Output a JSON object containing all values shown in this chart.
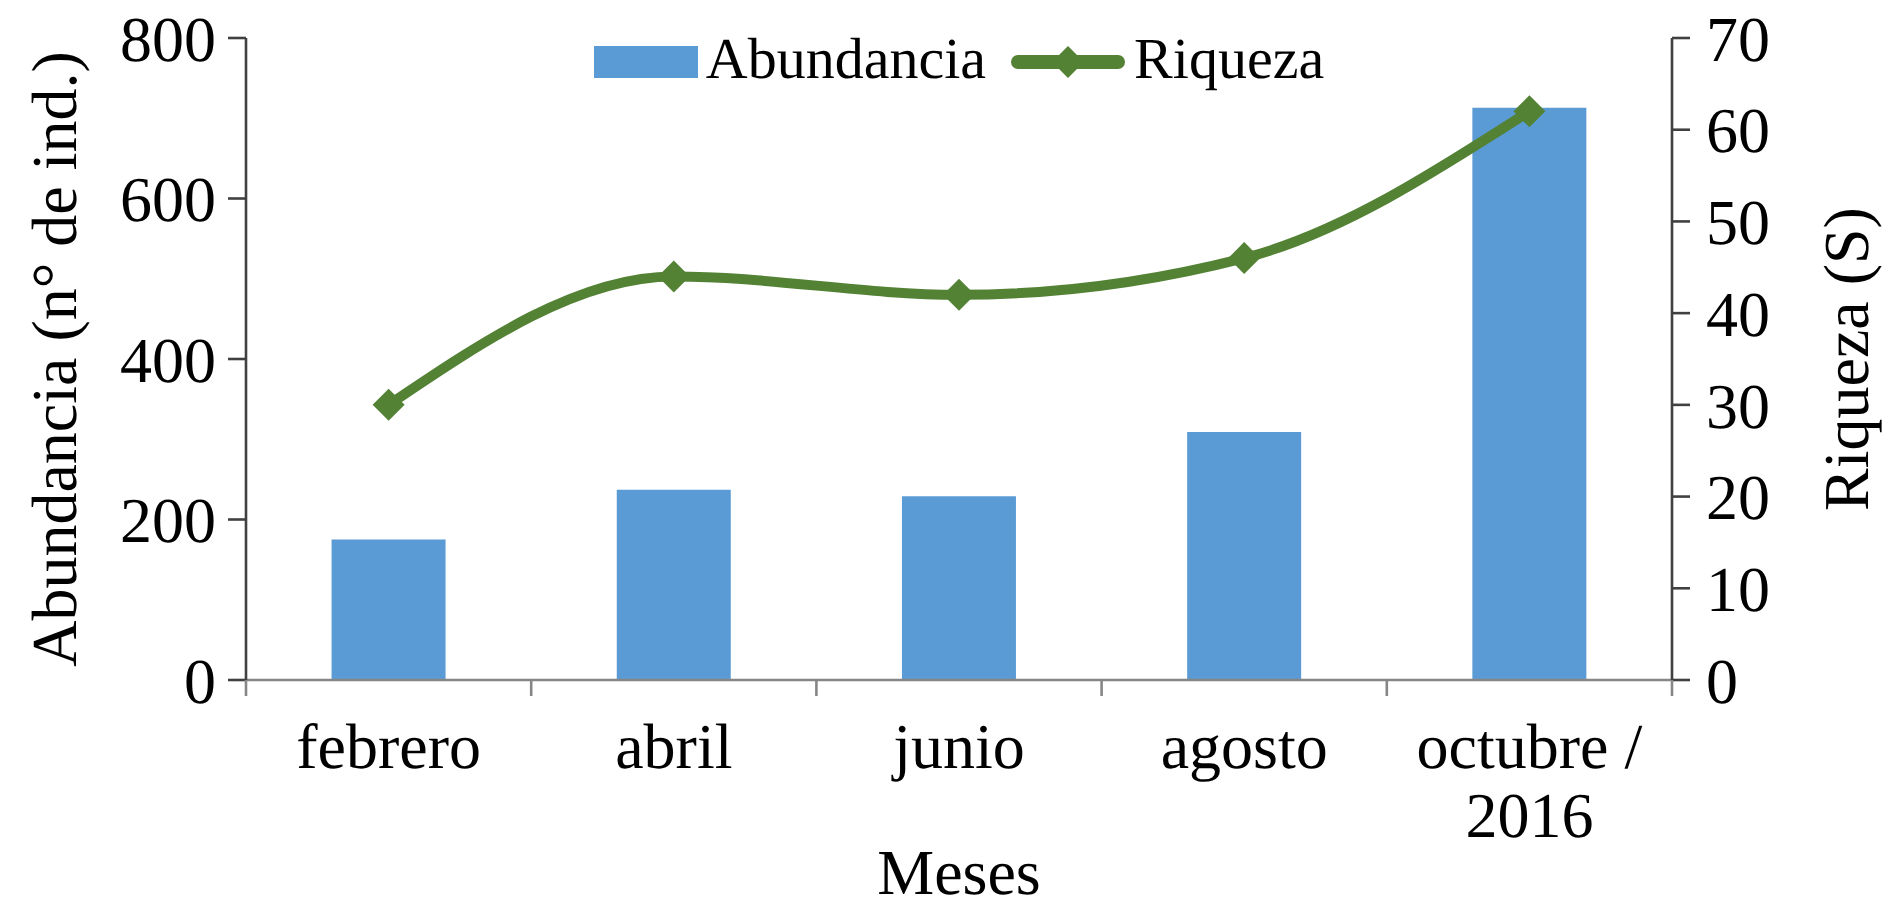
{
  "chart_data": {
    "type": "bar",
    "xlabel": "Meses",
    "ylabel": "Abundancia (n° de ind.)",
    "y2label": "Riqueza (S)",
    "categories": [
      "febrero",
      "abril",
      "junio",
      "agosto",
      "octubre / 2016"
    ],
    "series": [
      {
        "name": "Abundancia",
        "color": "#5b9bd5",
        "values": [
          175,
          237,
          229,
          309,
          713
        ]
      },
      {
        "name": "Riqueza",
        "type": "line",
        "axis": "y2",
        "color": "#548235",
        "values": [
          30,
          44,
          42,
          46,
          62
        ]
      }
    ],
    "ylim": [
      0,
      800
    ],
    "yticks": [
      0,
      200,
      400,
      600,
      800
    ],
    "y2lim": [
      0,
      70
    ],
    "y2ticks": [
      0,
      10,
      20,
      30,
      40,
      50,
      60,
      70
    ],
    "marker": "diamond",
    "legend": "top"
  }
}
